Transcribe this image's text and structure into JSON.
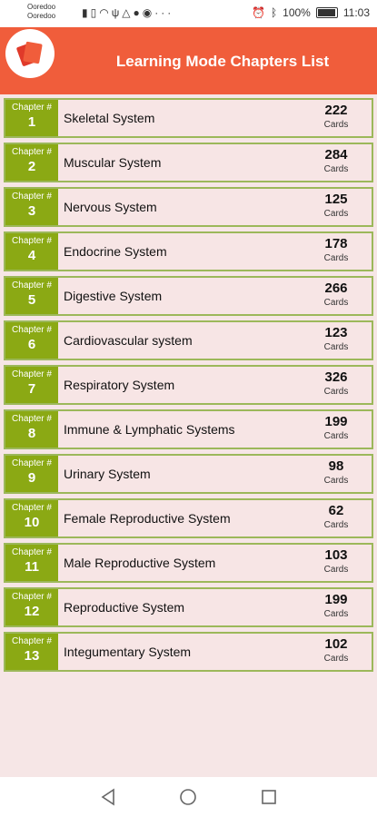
{
  "status_bar": {
    "carrier_line1": "Ooredoo",
    "carrier_line2": "Ooredoo",
    "battery_percent": "100%",
    "time": "11:03"
  },
  "header": {
    "title": "Learning Mode Chapters List"
  },
  "chapter_label": "Chapter #",
  "cards_label": "Cards",
  "chapters": [
    {
      "number": "1",
      "name": "Skeletal System",
      "cards": "222"
    },
    {
      "number": "2",
      "name": "Muscular System",
      "cards": "284"
    },
    {
      "number": "3",
      "name": "Nervous System",
      "cards": "125"
    },
    {
      "number": "4",
      "name": "Endocrine System",
      "cards": "178"
    },
    {
      "number": "5",
      "name": "Digestive System",
      "cards": "266"
    },
    {
      "number": "6",
      "name": "Cardiovascular system",
      "cards": "123"
    },
    {
      "number": "7",
      "name": "Respiratory System",
      "cards": "326"
    },
    {
      "number": "8",
      "name": "Immune & Lymphatic Systems",
      "cards": "199"
    },
    {
      "number": "9",
      "name": "Urinary System",
      "cards": "98"
    },
    {
      "number": "10",
      "name": "Female Reproductive System",
      "cards": "62"
    },
    {
      "number": "11",
      "name": "Male Reproductive System",
      "cards": "103"
    },
    {
      "number": "12",
      "name": "Reproductive System",
      "cards": "199"
    },
    {
      "number": "13",
      "name": "Integumentary System",
      "cards": "102"
    }
  ],
  "colors": {
    "header_bg": "#f05d3b",
    "chip_bg": "#8ba914",
    "row_bg": "#f7e5e5",
    "row_border": "#9cb85a"
  },
  "icons": {
    "status_left": [
      "signal-icon",
      "sim-icon",
      "wifi-icon",
      "usb-icon",
      "warning-icon",
      "messenger-icon",
      "whatsapp-icon",
      "more-icon"
    ],
    "status_right": [
      "alarm-icon",
      "bluetooth-icon",
      "battery-icon"
    ],
    "nav": [
      "back-icon",
      "home-icon",
      "recents-icon"
    ]
  }
}
